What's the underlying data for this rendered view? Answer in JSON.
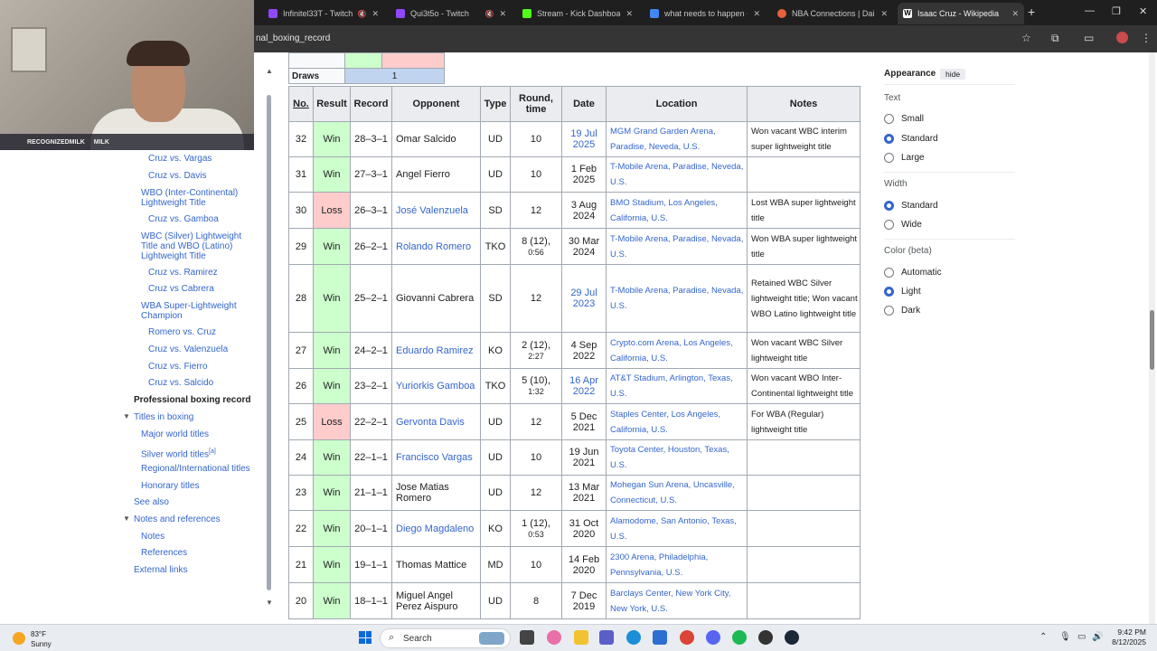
{
  "browser": {
    "tabs": [
      {
        "title": "Infinitel33T - Twitch",
        "color": "#9146ff",
        "muted": true
      },
      {
        "title": "Qui3t5o - Twitch",
        "color": "#9146ff",
        "muted": true
      },
      {
        "title": "Stream - Kick Dashboard",
        "color": "#53fc18",
        "muted": false
      },
      {
        "title": "what needs to happen - G",
        "color": "#4285f4",
        "muted": false
      },
      {
        "title": "NBA Connections | Daily N",
        "color": "#e8603c",
        "muted": false
      },
      {
        "title": "Isaac Cruz - Wikipedia",
        "color": "#ffffff",
        "muted": false
      }
    ],
    "url": "nal_boxing_record"
  },
  "webcam": {
    "overlay_left": "RECOGNIZEDMILK",
    "overlay_right": "MILK"
  },
  "toc": {
    "items": [
      {
        "label": "Cruz vs. Vargas"
      },
      {
        "label": "Cruz vs. Davis"
      },
      {
        "label": "WBO (Inter-Continental) Lightweight Title"
      },
      {
        "label": "Cruz vs. Gamboa"
      },
      {
        "label": "WBC (Silver) Lightweight Title and WBO (Latino) Lightweight Title"
      },
      {
        "label": "Cruz vs. Ramirez"
      },
      {
        "label": "Cruz vs Cabrera"
      },
      {
        "label": "WBA Super-Lightweight Champion"
      },
      {
        "label": "Romero vs. Cruz"
      },
      {
        "label": "Cruz vs. Valenzuela"
      },
      {
        "label": "Cruz vs. Fierro"
      },
      {
        "label": "Cruz vs. Salcido"
      },
      {
        "label": "Professional boxing record"
      },
      {
        "label": "Titles in boxing"
      },
      {
        "label": "Major world titles"
      },
      {
        "label": "Silver world titles"
      },
      {
        "label": "Regional/International titles"
      },
      {
        "label": "Honorary titles"
      },
      {
        "label": "See also"
      },
      {
        "label": "Notes and references"
      },
      {
        "label": "Notes"
      },
      {
        "label": "References"
      },
      {
        "label": "External links"
      }
    ],
    "silver_sup": "[a]"
  },
  "summary": {
    "draws_label": "Draws",
    "draws_value": "1"
  },
  "record_table": {
    "headers": [
      "No.",
      "Result",
      "Record",
      "Opponent",
      "Type",
      "Round, time",
      "Date",
      "Location",
      "Notes"
    ],
    "rows": [
      {
        "no": "32",
        "result": "Win",
        "record": "28–3–1",
        "opponent": "Omar Salcido",
        "opp_link": false,
        "type": "UD",
        "round": "10",
        "time": "",
        "date": "19 Jul 2025",
        "date_link": true,
        "location": "MGM Grand Garden Arena, Paradise, Neveda, U.S.",
        "notes": "Won vacant WBC interim super lightweight title"
      },
      {
        "no": "31",
        "result": "Win",
        "record": "27–3–1",
        "opponent": "Angel Fierro",
        "opp_link": false,
        "type": "UD",
        "round": "10",
        "time": "",
        "date": "1 Feb 2025",
        "date_link": false,
        "location": "T-Mobile Arena, Paradise, Neveda, U.S.",
        "notes": ""
      },
      {
        "no": "30",
        "result": "Loss",
        "record": "26–3–1",
        "opponent": "José Valenzuela",
        "opp_link": true,
        "type": "SD",
        "round": "12",
        "time": "",
        "date": "3 Aug 2024",
        "date_link": false,
        "location": "BMO Stadium, Los Angeles, California, U.S.",
        "notes": "Lost WBA super lightweight title"
      },
      {
        "no": "29",
        "result": "Win",
        "record": "26–2–1",
        "opponent": "Rolando Romero",
        "opp_link": true,
        "type": "TKO",
        "round": "8 (12),",
        "time": "0:56",
        "date": "30 Mar 2024",
        "date_link": false,
        "location": "T-Mobile Arena, Paradise, Nevada, U.S.",
        "notes": "Won WBA super lightweight title"
      },
      {
        "no": "28",
        "result": "Win",
        "record": "25–2–1",
        "opponent": "Giovanni Cabrera",
        "opp_link": false,
        "type": "SD",
        "round": "12",
        "time": "",
        "date": "29 Jul 2023",
        "date_link": true,
        "location": "T-Mobile Arena, Paradise, Nevada, U.S.",
        "notes": "Retained WBC Silver lightweight title; Won vacant WBO Latino lightweight title"
      },
      {
        "no": "27",
        "result": "Win",
        "record": "24–2–1",
        "opponent": "Eduardo Ramirez",
        "opp_link": true,
        "type": "KO",
        "round": "2 (12),",
        "time": "2:27",
        "date": "4 Sep 2022",
        "date_link": false,
        "location": "Crypto.com Arena, Los Angeles, California, U.S.",
        "notes": "Won vacant WBC Silver lightweight title"
      },
      {
        "no": "26",
        "result": "Win",
        "record": "23–2–1",
        "opponent": "Yuriorkis Gamboa",
        "opp_link": true,
        "type": "TKO",
        "round": "5 (10),",
        "time": "1:32",
        "date": "16 Apr 2022",
        "date_link": true,
        "location": "AT&T Stadium, Arlington, Texas, U.S.",
        "notes": "Won vacant WBO Inter-Continental lightweight title"
      },
      {
        "no": "25",
        "result": "Loss",
        "record": "22–2–1",
        "opponent": "Gervonta Davis",
        "opp_link": true,
        "type": "UD",
        "round": "12",
        "time": "",
        "date": "5 Dec 2021",
        "date_link": false,
        "location": "Staples Center, Los Angeles, California, U.S.",
        "notes": "For WBA (Regular) lightweight title"
      },
      {
        "no": "24",
        "result": "Win",
        "record": "22–1–1",
        "opponent": "Francisco Vargas",
        "opp_link": true,
        "type": "UD",
        "round": "10",
        "time": "",
        "date": "19 Jun 2021",
        "date_link": false,
        "location": "Toyota Center, Houston, Texas, U.S.",
        "notes": ""
      },
      {
        "no": "23",
        "result": "Win",
        "record": "21–1–1",
        "opponent": "Jose Matias Romero",
        "opp_link": false,
        "type": "UD",
        "round": "12",
        "time": "",
        "date": "13 Mar 2021",
        "date_link": false,
        "location": "Mohegan Sun Arena, Uncasville, Connecticut, U.S.",
        "notes": ""
      },
      {
        "no": "22",
        "result": "Win",
        "record": "20–1–1",
        "opponent": "Diego Magdaleno",
        "opp_link": true,
        "type": "KO",
        "round": "1 (12),",
        "time": "0:53",
        "date": "31 Oct 2020",
        "date_link": false,
        "location": "Alamodome, San Antonio, Texas, U.S.",
        "notes": ""
      },
      {
        "no": "21",
        "result": "Win",
        "record": "19–1–1",
        "opponent": "Thomas Mattice",
        "opp_link": false,
        "type": "MD",
        "round": "10",
        "time": "",
        "date": "14 Feb 2020",
        "date_link": false,
        "location": "2300 Arena, Philadelphia, Pennsylvania, U.S.",
        "notes": ""
      },
      {
        "no": "20",
        "result": "Win",
        "record": "18–1–1",
        "opponent": "Miguel Angel Perez Aispuro",
        "opp_link": false,
        "type": "UD",
        "round": "8",
        "time": "",
        "date": "7 Dec 2019",
        "date_link": false,
        "location": "Barclays Center, New York City, New York, U.S.",
        "notes": ""
      }
    ]
  },
  "appearance": {
    "title": "Appearance",
    "hide_label": "hide",
    "text_label": "Text",
    "text_options": [
      "Small",
      "Standard",
      "Large"
    ],
    "text_selected": 1,
    "width_label": "Width",
    "width_options": [
      "Standard",
      "Wide"
    ],
    "width_selected": 0,
    "color_label": "Color (beta)",
    "color_options": [
      "Automatic",
      "Light",
      "Dark"
    ],
    "color_selected": 1
  },
  "taskbar": {
    "temp": "83°F",
    "condition": "Sunny",
    "search_placeholder": "Search",
    "time": "9:42 PM",
    "date": "8/12/2025"
  }
}
